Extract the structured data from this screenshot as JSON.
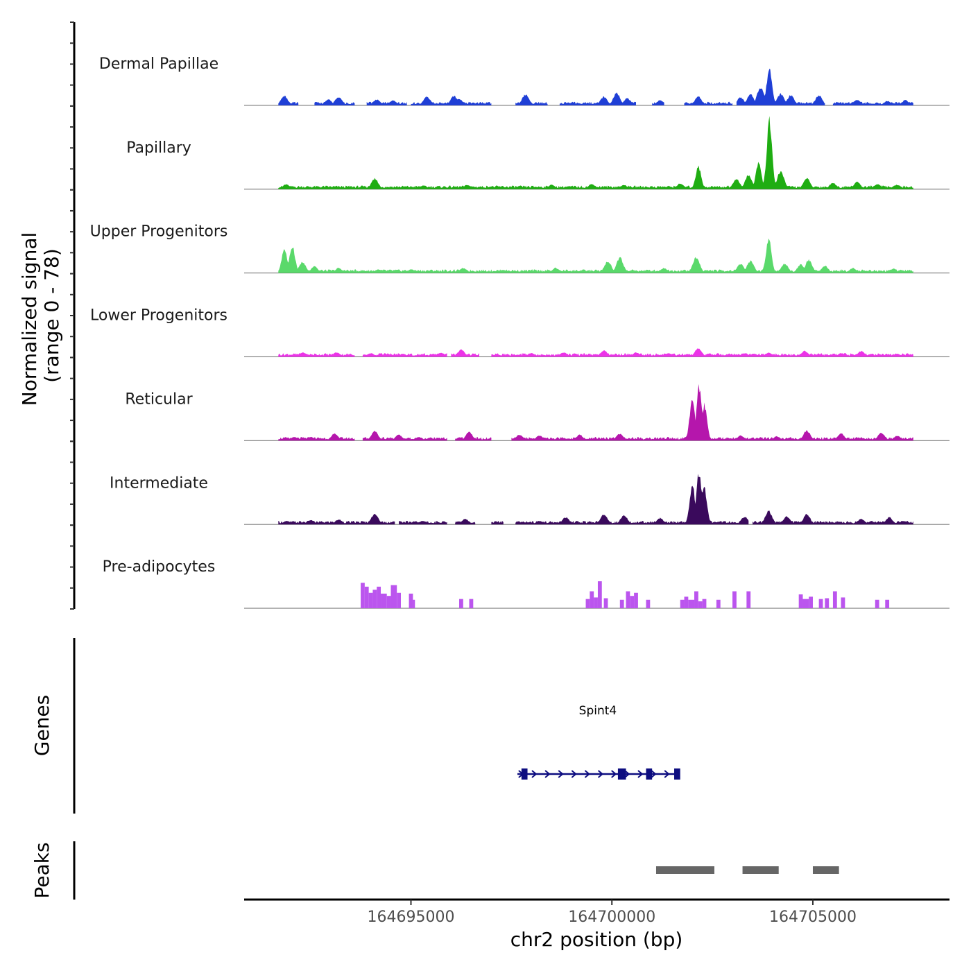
{
  "chart_data": {
    "type": "area",
    "y_axis_title_line1": "Normalized signal",
    "y_axis_title_line2": "(range 0 - 78)",
    "ylim": [
      0,
      78
    ],
    "xlabel": "chr2 position (bp)",
    "xlim": [
      164690850,
      164708400
    ],
    "x_ticks": [
      {
        "value": 164695000,
        "label": "164695000"
      },
      {
        "value": 164700000,
        "label": "164700000"
      },
      {
        "value": 164705000,
        "label": "164705000"
      }
    ],
    "series": [
      {
        "name": "Dermal Papillae",
        "color": "#1f3fd6",
        "regions": [
          [
            164691700,
            164692200
          ],
          [
            164692600,
            164693600
          ],
          [
            164693900,
            164694900
          ],
          [
            164695000,
            164697000
          ],
          [
            164697600,
            164698400
          ],
          [
            164698700,
            164700600
          ],
          [
            164701000,
            164701300
          ],
          [
            164701800,
            164703000
          ],
          [
            164703100,
            164705300
          ],
          [
            164705500,
            164707500
          ]
        ],
        "peaks": [
          {
            "x": 164691850,
            "y": 13
          },
          {
            "x": 164692950,
            "y": 8
          },
          {
            "x": 164693200,
            "y": 12
          },
          {
            "x": 164694150,
            "y": 8
          },
          {
            "x": 164694550,
            "y": 7
          },
          {
            "x": 164695400,
            "y": 12
          },
          {
            "x": 164696070,
            "y": 13
          },
          {
            "x": 164696200,
            "y": 9
          },
          {
            "x": 164697850,
            "y": 15
          },
          {
            "x": 164699800,
            "y": 12
          },
          {
            "x": 164700120,
            "y": 17
          },
          {
            "x": 164700380,
            "y": 10
          },
          {
            "x": 164701200,
            "y": 7
          },
          {
            "x": 164702150,
            "y": 12
          },
          {
            "x": 164703200,
            "y": 11
          },
          {
            "x": 164703450,
            "y": 15
          },
          {
            "x": 164703700,
            "y": 26
          },
          {
            "x": 164703920,
            "y": 52
          },
          {
            "x": 164704200,
            "y": 16
          },
          {
            "x": 164704450,
            "y": 14
          },
          {
            "x": 164705150,
            "y": 14
          },
          {
            "x": 164706100,
            "y": 8
          },
          {
            "x": 164706850,
            "y": 6
          },
          {
            "x": 164707300,
            "y": 7
          }
        ]
      },
      {
        "name": "Papillary",
        "color": "#1fad12",
        "regions": [
          [
            164691700,
            164707500
          ]
        ],
        "peaks": [
          {
            "x": 164691900,
            "y": 7
          },
          {
            "x": 164694100,
            "y": 15
          },
          {
            "x": 164695300,
            "y": 5
          },
          {
            "x": 164696400,
            "y": 6
          },
          {
            "x": 164697000,
            "y": 4
          },
          {
            "x": 164698500,
            "y": 6
          },
          {
            "x": 164699500,
            "y": 7
          },
          {
            "x": 164700300,
            "y": 6
          },
          {
            "x": 164701700,
            "y": 8
          },
          {
            "x": 164702150,
            "y": 32
          },
          {
            "x": 164703100,
            "y": 14
          },
          {
            "x": 164703400,
            "y": 20
          },
          {
            "x": 164703650,
            "y": 38
          },
          {
            "x": 164703920,
            "y": 96
          },
          {
            "x": 164704200,
            "y": 25
          },
          {
            "x": 164704850,
            "y": 15
          },
          {
            "x": 164705500,
            "y": 9
          },
          {
            "x": 164706100,
            "y": 10
          },
          {
            "x": 164706600,
            "y": 7
          },
          {
            "x": 164707100,
            "y": 6
          }
        ]
      },
      {
        "name": "Upper Progenitors",
        "color": "#5ad96b",
        "regions": [
          [
            164691700,
            164707500
          ]
        ],
        "peaks": [
          {
            "x": 164691850,
            "y": 34
          },
          {
            "x": 164692050,
            "y": 38
          },
          {
            "x": 164692300,
            "y": 15
          },
          {
            "x": 164692600,
            "y": 9
          },
          {
            "x": 164693200,
            "y": 7
          },
          {
            "x": 164694200,
            "y": 5
          },
          {
            "x": 164695000,
            "y": 5
          },
          {
            "x": 164696300,
            "y": 7
          },
          {
            "x": 164697300,
            "y": 4
          },
          {
            "x": 164698600,
            "y": 7
          },
          {
            "x": 164699900,
            "y": 17
          },
          {
            "x": 164700200,
            "y": 21
          },
          {
            "x": 164701300,
            "y": 7
          },
          {
            "x": 164702100,
            "y": 22
          },
          {
            "x": 164703200,
            "y": 13
          },
          {
            "x": 164703450,
            "y": 17
          },
          {
            "x": 164703900,
            "y": 48
          },
          {
            "x": 164704300,
            "y": 13
          },
          {
            "x": 164704700,
            "y": 12
          },
          {
            "x": 164704900,
            "y": 18
          },
          {
            "x": 164705300,
            "y": 10
          },
          {
            "x": 164706000,
            "y": 7
          },
          {
            "x": 164707000,
            "y": 6
          }
        ]
      },
      {
        "name": "Lower Progenitors",
        "color": "#ec33e8",
        "regions": [
          [
            164691700,
            164693600
          ],
          [
            164693800,
            164695900
          ],
          [
            164696000,
            164696700
          ],
          [
            164697000,
            164707500
          ]
        ],
        "peaks": [
          {
            "x": 164692300,
            "y": 6
          },
          {
            "x": 164693150,
            "y": 6
          },
          {
            "x": 164694000,
            "y": 5
          },
          {
            "x": 164694800,
            "y": 4
          },
          {
            "x": 164695750,
            "y": 6
          },
          {
            "x": 164696250,
            "y": 10
          },
          {
            "x": 164698000,
            "y": 5
          },
          {
            "x": 164698800,
            "y": 6
          },
          {
            "x": 164699800,
            "y": 9
          },
          {
            "x": 164700600,
            "y": 6
          },
          {
            "x": 164701400,
            "y": 5
          },
          {
            "x": 164702150,
            "y": 12
          },
          {
            "x": 164703300,
            "y": 5
          },
          {
            "x": 164703900,
            "y": 6
          },
          {
            "x": 164704800,
            "y": 8
          },
          {
            "x": 164705700,
            "y": 5
          },
          {
            "x": 164706200,
            "y": 8
          },
          {
            "x": 164707100,
            "y": 4
          }
        ]
      },
      {
        "name": "Reticular",
        "color": "#b516ac",
        "regions": [
          [
            164691700,
            164693600
          ],
          [
            164693800,
            164695900
          ],
          [
            164696100,
            164697000
          ],
          [
            164697500,
            164707500
          ]
        ],
        "peaks": [
          {
            "x": 164692100,
            "y": 5
          },
          {
            "x": 164692500,
            "y": 5
          },
          {
            "x": 164693100,
            "y": 10
          },
          {
            "x": 164694100,
            "y": 13
          },
          {
            "x": 164694700,
            "y": 8
          },
          {
            "x": 164695200,
            "y": 5
          },
          {
            "x": 164696450,
            "y": 12
          },
          {
            "x": 164697700,
            "y": 8
          },
          {
            "x": 164698200,
            "y": 7
          },
          {
            "x": 164699200,
            "y": 8
          },
          {
            "x": 164700200,
            "y": 10
          },
          {
            "x": 164702000,
            "y": 55
          },
          {
            "x": 164702170,
            "y": 75
          },
          {
            "x": 164702300,
            "y": 50
          },
          {
            "x": 164703200,
            "y": 7
          },
          {
            "x": 164704100,
            "y": 6
          },
          {
            "x": 164704850,
            "y": 14
          },
          {
            "x": 164705700,
            "y": 10
          },
          {
            "x": 164706700,
            "y": 11
          },
          {
            "x": 164707100,
            "y": 7
          }
        ]
      },
      {
        "name": "Intermediate",
        "color": "#3a0a5c",
        "regions": [
          [
            164691700,
            164694600
          ],
          [
            164694700,
            164695900
          ],
          [
            164696100,
            164696600
          ],
          [
            164697000,
            164697300
          ],
          [
            164697600,
            164703400
          ],
          [
            164703500,
            164707500
          ]
        ],
        "peaks": [
          {
            "x": 164691900,
            "y": 5
          },
          {
            "x": 164692500,
            "y": 6
          },
          {
            "x": 164693200,
            "y": 7
          },
          {
            "x": 164694100,
            "y": 15
          },
          {
            "x": 164694700,
            "y": 5
          },
          {
            "x": 164695300,
            "y": 5
          },
          {
            "x": 164696350,
            "y": 8
          },
          {
            "x": 164697500,
            "y": 3
          },
          {
            "x": 164698200,
            "y": 5
          },
          {
            "x": 164698850,
            "y": 10
          },
          {
            "x": 164699800,
            "y": 14
          },
          {
            "x": 164700300,
            "y": 13
          },
          {
            "x": 164701200,
            "y": 9
          },
          {
            "x": 164702000,
            "y": 55
          },
          {
            "x": 164702170,
            "y": 74
          },
          {
            "x": 164702300,
            "y": 50
          },
          {
            "x": 164703300,
            "y": 11
          },
          {
            "x": 164703900,
            "y": 19
          },
          {
            "x": 164704350,
            "y": 11
          },
          {
            "x": 164704850,
            "y": 14
          },
          {
            "x": 164706200,
            "y": 8
          },
          {
            "x": 164706900,
            "y": 10
          },
          {
            "x": 164707250,
            "y": 5
          }
        ]
      },
      {
        "name": "Pre-adipocytes",
        "color": "#bb55ee",
        "bars": [
          {
            "x0": 164693750,
            "x1": 164693850,
            "y": 33
          },
          {
            "x0": 164693850,
            "x1": 164693950,
            "y": 28
          },
          {
            "x0": 164693950,
            "x1": 164694050,
            "y": 20
          },
          {
            "x0": 164694050,
            "x1": 164694150,
            "y": 24
          },
          {
            "x0": 164694150,
            "x1": 164694250,
            "y": 28
          },
          {
            "x0": 164694250,
            "x1": 164694400,
            "y": 19
          },
          {
            "x0": 164694400,
            "x1": 164694500,
            "y": 16
          },
          {
            "x0": 164694500,
            "x1": 164694650,
            "y": 30
          },
          {
            "x0": 164694650,
            "x1": 164694750,
            "y": 20
          },
          {
            "x0": 164694950,
            "x1": 164695050,
            "y": 19
          },
          {
            "x0": 164695050,
            "x1": 164695100,
            "y": 11
          },
          {
            "x0": 164696200,
            "x1": 164696300,
            "y": 12
          },
          {
            "x0": 164696450,
            "x1": 164696550,
            "y": 12
          },
          {
            "x0": 164699350,
            "x1": 164699450,
            "y": 12
          },
          {
            "x0": 164699450,
            "x1": 164699550,
            "y": 22
          },
          {
            "x0": 164699550,
            "x1": 164699650,
            "y": 14
          },
          {
            "x0": 164699650,
            "x1": 164699750,
            "y": 35
          },
          {
            "x0": 164699800,
            "x1": 164699900,
            "y": 13
          },
          {
            "x0": 164700200,
            "x1": 164700300,
            "y": 11
          },
          {
            "x0": 164700350,
            "x1": 164700450,
            "y": 22
          },
          {
            "x0": 164700450,
            "x1": 164700550,
            "y": 16
          },
          {
            "x0": 164700550,
            "x1": 164700650,
            "y": 20
          },
          {
            "x0": 164700850,
            "x1": 164700950,
            "y": 11
          },
          {
            "x0": 164701700,
            "x1": 164701800,
            "y": 11
          },
          {
            "x0": 164701800,
            "x1": 164701900,
            "y": 15
          },
          {
            "x0": 164701900,
            "x1": 164702050,
            "y": 11
          },
          {
            "x0": 164702050,
            "x1": 164702150,
            "y": 22
          },
          {
            "x0": 164702150,
            "x1": 164702250,
            "y": 9
          },
          {
            "x0": 164702250,
            "x1": 164702350,
            "y": 12
          },
          {
            "x0": 164702600,
            "x1": 164702700,
            "y": 11
          },
          {
            "x0": 164703000,
            "x1": 164703100,
            "y": 22
          },
          {
            "x0": 164703350,
            "x1": 164703450,
            "y": 22
          },
          {
            "x0": 164704650,
            "x1": 164704750,
            "y": 18
          },
          {
            "x0": 164704750,
            "x1": 164704900,
            "y": 12
          },
          {
            "x0": 164704900,
            "x1": 164705000,
            "y": 15
          },
          {
            "x0": 164705150,
            "x1": 164705250,
            "y": 12
          },
          {
            "x0": 164705300,
            "x1": 164705400,
            "y": 13
          },
          {
            "x0": 164705500,
            "x1": 164705600,
            "y": 22
          },
          {
            "x0": 164705700,
            "x1": 164705800,
            "y": 14
          },
          {
            "x0": 164706550,
            "x1": 164706650,
            "y": 11
          },
          {
            "x0": 164706800,
            "x1": 164706900,
            "y": 11
          }
        ]
      }
    ],
    "genes_track": {
      "title": "Genes",
      "color": "#0d0d80",
      "genes": [
        {
          "name": "Spint4",
          "strand": "+",
          "start": 164697650,
          "end": 164701650,
          "exons": [
            [
              164697750,
              164697900
            ],
            [
              164700150,
              164700350
            ],
            [
              164700850,
              164701000
            ],
            [
              164701550,
              164701700
            ]
          ]
        }
      ]
    },
    "peaks_track": {
      "title": "Peaks",
      "color": "#666666",
      "intervals": [
        [
          164701100,
          164702550
        ],
        [
          164703250,
          164704150
        ],
        [
          164705000,
          164705650
        ]
      ]
    }
  }
}
